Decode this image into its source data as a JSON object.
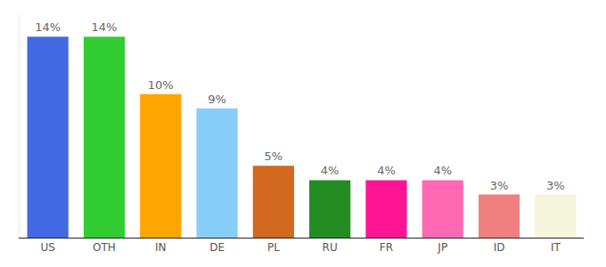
{
  "chart_data": {
    "type": "bar",
    "categories": [
      "US",
      "OTH",
      "IN",
      "DE",
      "PL",
      "RU",
      "FR",
      "JP",
      "ID",
      "IT"
    ],
    "values": [
      14,
      14,
      10,
      9,
      5,
      4,
      4,
      4,
      3,
      3
    ],
    "value_labels": [
      "14%",
      "14%",
      "10%",
      "9%",
      "5%",
      "4%",
      "4%",
      "4%",
      "3%",
      "3%"
    ],
    "colors": [
      "#4169e1",
      "#32cd32",
      "#ffa500",
      "#87cefa",
      "#d2691e",
      "#228b22",
      "#ff1493",
      "#ff69b4",
      "#f08080",
      "#f5f5dc"
    ],
    "ylim": [
      0,
      15.5
    ],
    "grid": false,
    "data_labels": true,
    "tick_labels": "x"
  }
}
